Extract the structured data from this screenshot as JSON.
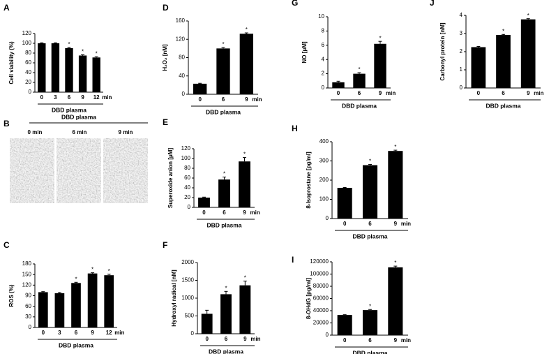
{
  "chart_data": [
    {
      "type": "bar",
      "label": "A",
      "ylabel": "Cell viability (%)",
      "xlabel": "DBD plasma",
      "x_unit": "min",
      "categories": [
        "0",
        "3",
        "6",
        "9",
        "12"
      ],
      "values": [
        100,
        100,
        90,
        75,
        71
      ],
      "errors": [
        1,
        1,
        1.5,
        1.5,
        1.5
      ],
      "significance": [
        null,
        null,
        "*",
        "*",
        "*"
      ],
      "ylim": [
        0,
        120
      ],
      "yticks": [
        0,
        20,
        40,
        60,
        80,
        100,
        120
      ],
      "color": "#000000"
    },
    {
      "type": "bar",
      "label": "C",
      "ylabel": "ROS (%)",
      "xlabel": "DBD plasma",
      "x_unit": "min",
      "categories": [
        "0",
        "3",
        "6",
        "9",
        "12"
      ],
      "values": [
        100,
        97,
        126,
        153,
        148
      ],
      "errors": [
        1.5,
        2,
        2,
        2,
        3
      ],
      "significance": [
        null,
        null,
        "*",
        "*",
        "*"
      ],
      "ylim": [
        0,
        180
      ],
      "yticks": [
        0,
        30,
        60,
        90,
        120,
        150,
        180
      ],
      "color": "#000000"
    },
    {
      "type": "bar",
      "label": "D",
      "ylabel": "H₂O₂ [nM]",
      "xlabel": "DBD plasma",
      "x_unit": "min",
      "categories": [
        "0",
        "6",
        "9"
      ],
      "values": [
        23,
        100,
        132
      ],
      "errors": [
        1,
        2,
        2
      ],
      "significance": [
        null,
        "*",
        "*"
      ],
      "ylim": [
        0,
        160
      ],
      "yticks": [
        0,
        40,
        80,
        120,
        160
      ],
      "color": "#000000"
    },
    {
      "type": "bar",
      "label": "E",
      "ylabel": "Superoxide anion [μM]",
      "xlabel": "DBD plasma",
      "x_unit": "min",
      "categories": [
        "0",
        "6",
        "9"
      ],
      "values": [
        20,
        57,
        94
      ],
      "errors": [
        1,
        5,
        8
      ],
      "significance": [
        null,
        "*",
        "*"
      ],
      "ylim": [
        0,
        120
      ],
      "yticks": [
        0,
        20,
        40,
        60,
        80,
        100,
        120
      ],
      "color": "#000000"
    },
    {
      "type": "bar",
      "label": "F",
      "ylabel": "Hydroxyl radical [nM]",
      "xlabel": "DBD plasma",
      "x_unit": "min",
      "categories": [
        "0",
        "6",
        "9"
      ],
      "values": [
        560,
        1110,
        1360
      ],
      "errors": [
        100,
        80,
        120
      ],
      "significance": [
        null,
        "*",
        "*"
      ],
      "ylim": [
        0,
        2000
      ],
      "yticks": [
        0,
        500,
        1000,
        1500,
        2000
      ],
      "color": "#000000"
    },
    {
      "type": "bar",
      "label": "G",
      "ylabel": "NO [μM]",
      "xlabel": "DBD plasma",
      "x_unit": "min",
      "categories": [
        "0",
        "6",
        "9"
      ],
      "values": [
        0.8,
        2.0,
        6.2
      ],
      "errors": [
        0.15,
        0.15,
        0.35
      ],
      "significance": [
        null,
        "*",
        "*"
      ],
      "ylim": [
        0,
        10
      ],
      "yticks": [
        0,
        2,
        4,
        6,
        8,
        10
      ],
      "color": "#000000"
    },
    {
      "type": "bar",
      "label": "H",
      "ylabel": "8-Isoprostane [pg/ml]",
      "xlabel": "DBD plasma",
      "x_unit": "min",
      "categories": [
        "0",
        "6",
        "9"
      ],
      "values": [
        160,
        278,
        352
      ],
      "errors": [
        2,
        4,
        4
      ],
      "significance": [
        null,
        "*",
        "*"
      ],
      "ylim": [
        0,
        400
      ],
      "yticks": [
        0,
        100,
        200,
        300,
        400
      ],
      "color": "#000000"
    },
    {
      "type": "bar",
      "label": "I",
      "ylabel": "8-OHdG [pg/ml]",
      "xlabel": "DBD plasma",
      "x_unit": "min",
      "categories": [
        "0",
        "6",
        "9"
      ],
      "values": [
        33000,
        41000,
        111000
      ],
      "errors": [
        500,
        1000,
        2000
      ],
      "significance": [
        null,
        "*",
        "*"
      ],
      "ylim": [
        0,
        120000
      ],
      "yticks": [
        0,
        20000,
        40000,
        60000,
        80000,
        100000,
        120000
      ],
      "color": "#000000"
    },
    {
      "type": "bar",
      "label": "J",
      "ylabel": "Carbonyl protein [nM]",
      "xlabel": "DBD plasma",
      "x_unit": "min",
      "categories": [
        "0",
        "6",
        "9"
      ],
      "values": [
        2.25,
        2.92,
        3.78
      ],
      "errors": [
        0.04,
        0.03,
        0.04
      ],
      "significance": [
        null,
        "*",
        "*"
      ],
      "ylim": [
        0,
        4
      ],
      "yticks": [
        0,
        1,
        2,
        3,
        4
      ],
      "color": "#000000"
    }
  ],
  "panel_b": {
    "label": "B",
    "title": "DBD plasma",
    "images": [
      "0 min",
      "6 min",
      "9 min"
    ]
  }
}
